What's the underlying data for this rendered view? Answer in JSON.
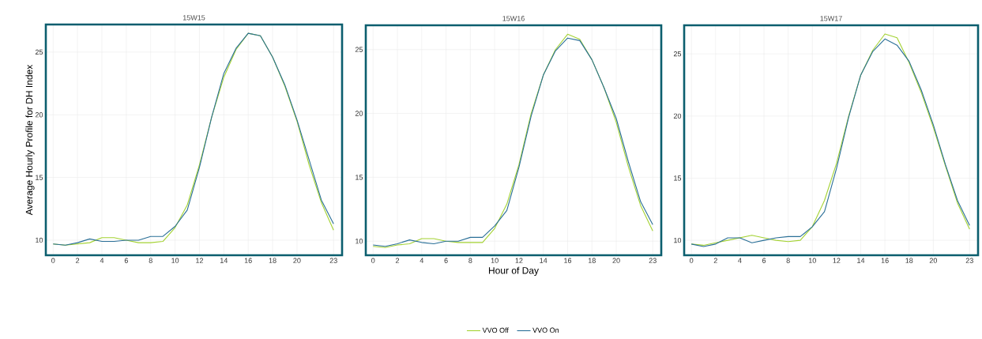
{
  "chart_data": [
    {
      "type": "line",
      "title": "15W15",
      "ylabel": "Average Hourly Profile for DH Index",
      "x": [
        0,
        1,
        2,
        3,
        4,
        5,
        6,
        7,
        8,
        9,
        10,
        11,
        12,
        13,
        14,
        15,
        16,
        17,
        18,
        19,
        20,
        21,
        22,
        23
      ],
      "xlim": [
        -0.6,
        23.7
      ],
      "xticks": [
        0,
        2,
        4,
        6,
        8,
        10,
        12,
        14,
        16,
        18,
        20,
        23
      ],
      "ylim": [
        8.8,
        27.2
      ],
      "yticks": [
        10,
        15,
        20,
        25
      ],
      "grid": true,
      "legend": false,
      "series": [
        {
          "color": "#a4d233",
          "values": [
            9.7,
            9.6,
            9.7,
            9.8,
            10.2,
            10.2,
            10.0,
            9.8,
            9.8,
            9.9,
            11.0,
            12.8,
            16.0,
            19.8,
            23.0,
            25.2,
            26.5,
            26.3,
            24.6,
            22.3,
            19.5,
            16.0,
            13.0,
            10.8
          ]
        },
        {
          "color": "#2a6f97",
          "values": [
            9.7,
            9.6,
            9.8,
            10.1,
            9.9,
            9.9,
            10.0,
            10.0,
            10.3,
            10.3,
            11.1,
            12.4,
            15.8,
            19.8,
            23.3,
            25.3,
            26.5,
            26.3,
            24.6,
            22.4,
            19.6,
            16.4,
            13.2,
            11.3
          ]
        }
      ]
    },
    {
      "type": "line",
      "title": "15W16",
      "xlabel": "Hour of Day",
      "x": [
        0,
        1,
        2,
        3,
        4,
        5,
        6,
        7,
        8,
        9,
        10,
        11,
        12,
        13,
        14,
        15,
        16,
        17,
        18,
        19,
        20,
        21,
        22,
        23
      ],
      "xlim": [
        -0.6,
        23.7
      ],
      "xticks": [
        0,
        2,
        4,
        6,
        8,
        10,
        12,
        14,
        16,
        18,
        20,
        23
      ],
      "ylim": [
        8.9,
        26.9
      ],
      "yticks": [
        10,
        15,
        20,
        25
      ],
      "grid": true,
      "legend": "bottom",
      "series": [
        {
          "name": "VVO Off",
          "color": "#a4d233",
          "values": [
            9.6,
            9.5,
            9.7,
            9.8,
            10.2,
            10.2,
            10.0,
            9.9,
            9.9,
            9.9,
            11.0,
            12.9,
            16.0,
            20.0,
            23.0,
            25.0,
            26.2,
            25.8,
            24.2,
            22.0,
            19.3,
            15.8,
            12.8,
            10.8
          ]
        },
        {
          "name": "VVO On",
          "color": "#2a6f97",
          "values": [
            9.7,
            9.6,
            9.8,
            10.1,
            9.9,
            9.8,
            10.0,
            10.0,
            10.3,
            10.3,
            11.2,
            12.4,
            15.8,
            19.8,
            23.0,
            24.9,
            25.9,
            25.7,
            24.2,
            22.0,
            19.6,
            16.2,
            13.1,
            11.3
          ]
        }
      ]
    },
    {
      "type": "line",
      "title": "15W17",
      "x": [
        0,
        1,
        2,
        3,
        4,
        5,
        6,
        7,
        8,
        9,
        10,
        11,
        12,
        13,
        14,
        15,
        16,
        17,
        18,
        19,
        20,
        21,
        22,
        23
      ],
      "xlim": [
        -0.6,
        23.7
      ],
      "xticks": [
        0,
        2,
        4,
        6,
        8,
        10,
        12,
        14,
        16,
        18,
        20,
        23
      ],
      "ylim": [
        8.8,
        27.3
      ],
      "yticks": [
        10,
        15,
        20,
        25
      ],
      "grid": true,
      "legend": false,
      "series": [
        {
          "color": "#a4d233",
          "values": [
            9.7,
            9.6,
            9.8,
            10.0,
            10.2,
            10.4,
            10.2,
            10.0,
            9.9,
            10.0,
            11.1,
            13.2,
            16.2,
            20.0,
            23.3,
            25.3,
            26.6,
            26.3,
            24.3,
            21.9,
            19.1,
            16.0,
            13.0,
            10.9
          ]
        },
        {
          "color": "#2a6f97",
          "values": [
            9.7,
            9.5,
            9.7,
            10.2,
            10.2,
            9.8,
            10.0,
            10.2,
            10.3,
            10.3,
            11.1,
            12.3,
            15.8,
            19.9,
            23.3,
            25.2,
            26.2,
            25.7,
            24.4,
            22.1,
            19.3,
            16.1,
            13.2,
            11.2
          ]
        }
      ]
    }
  ]
}
